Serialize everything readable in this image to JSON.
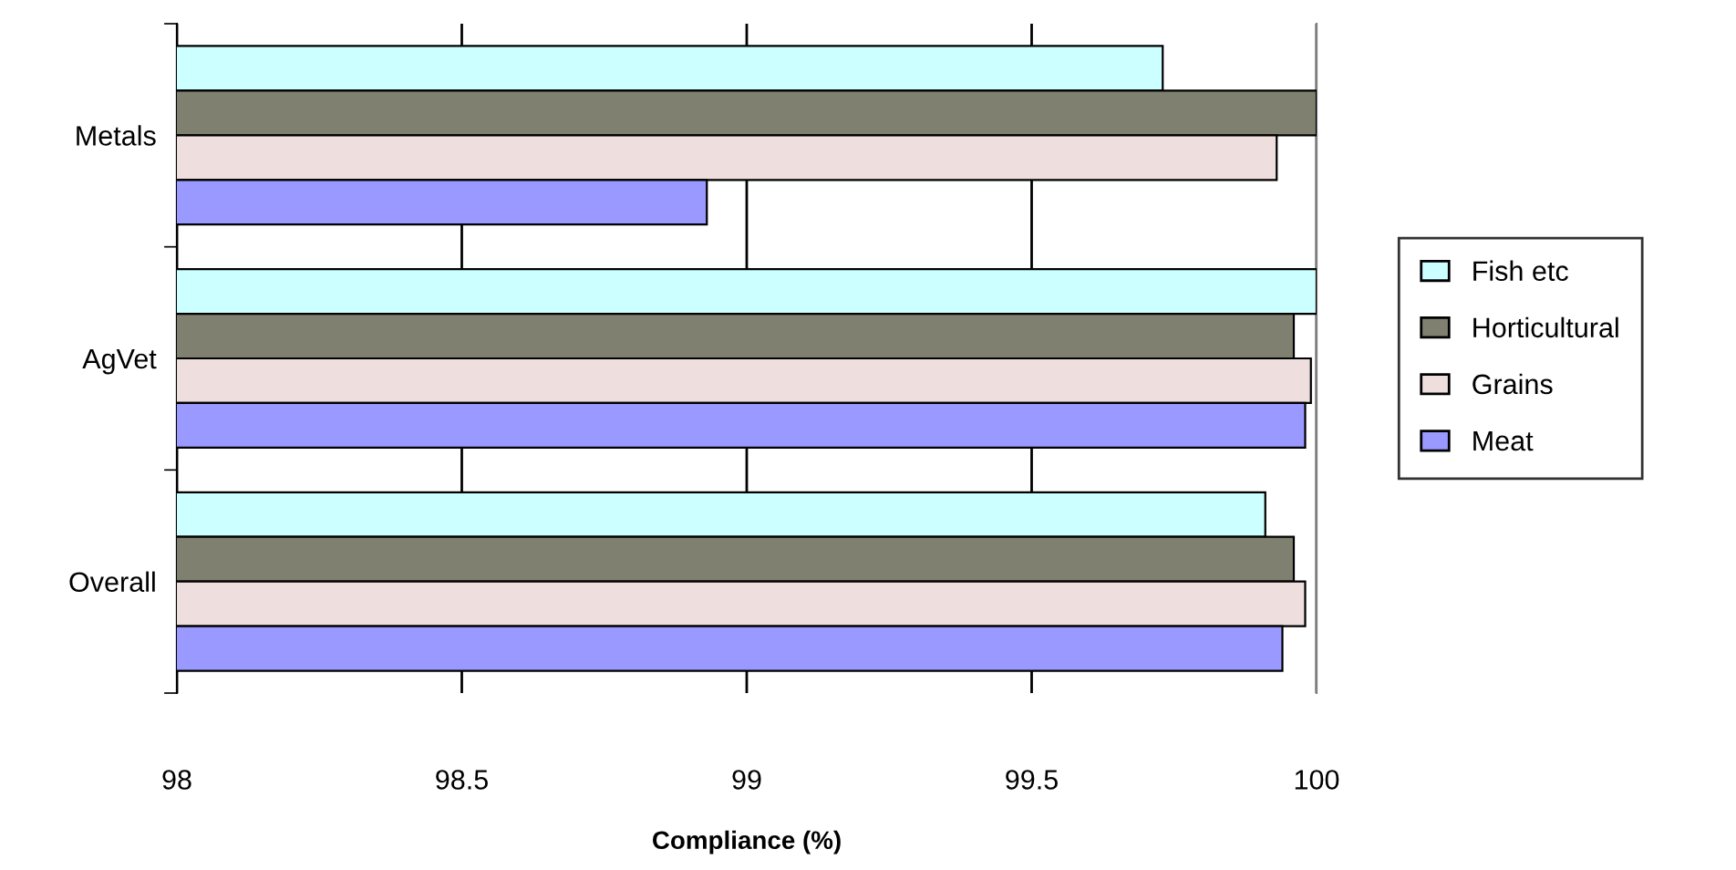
{
  "chart_data": {
    "type": "bar",
    "orientation": "horizontal",
    "xlabel": "Compliance (%)",
    "categories": [
      "Metals",
      "AgVet",
      "Overall"
    ],
    "series": [
      {
        "name": "Fish etc",
        "color": "#ccffff",
        "values": [
          99.73,
          100,
          99.91
        ]
      },
      {
        "name": "Horticultural",
        "color": "#808070",
        "values": [
          100,
          99.96,
          99.96
        ]
      },
      {
        "name": "Grains",
        "color": "#eedede",
        "values": [
          99.93,
          99.99,
          99.98
        ]
      },
      {
        "name": "Meat",
        "color": "#9999ff",
        "values": [
          98.93,
          99.98,
          99.94
        ]
      }
    ],
    "xlim": [
      98,
      100
    ],
    "xticks": [
      98,
      98.5,
      99,
      99.5,
      100
    ],
    "grid": "x",
    "legend": "right"
  }
}
